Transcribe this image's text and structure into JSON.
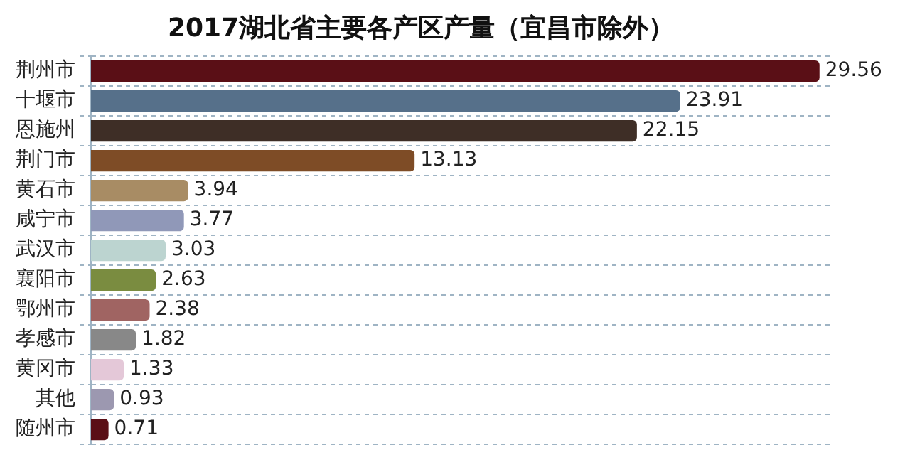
{
  "chart_data": {
    "type": "bar",
    "orientation": "horizontal",
    "title": "2017湖北省主要各产区产量（宜昌市除外）",
    "categories": [
      "荆州市",
      "十堰市",
      "恩施州",
      "荆门市",
      "黄石市",
      "咸宁市",
      "武汉市",
      "襄阳市",
      "鄂州市",
      "孝感市",
      "黄冈市",
      "其他",
      "随州市"
    ],
    "values": [
      29.56,
      23.91,
      22.15,
      13.13,
      3.94,
      3.77,
      3.03,
      2.63,
      2.38,
      1.82,
      1.33,
      0.93,
      0.71
    ],
    "colors": [
      "#5a0f16",
      "#56708a",
      "#3e2e26",
      "#7e4c26",
      "#a88c64",
      "#9098b8",
      "#bcd4d0",
      "#7a8c40",
      "#a06462",
      "#888888",
      "#e4c8d8",
      "#9c98b0",
      "#5a0f16"
    ],
    "tick_labels": "y",
    "data_labels": true,
    "grid": "y",
    "legend": false
  }
}
